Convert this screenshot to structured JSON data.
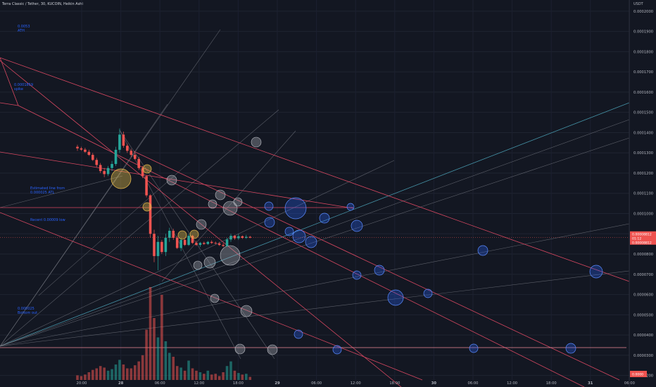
{
  "chart": {
    "title": "Terra Classic / Tether, 30, KUCOIN, Heikin Ashi",
    "unit": "USDT",
    "price_tag": [
      "0.00008812",
      "01:12",
      "0.00008812"
    ],
    "bottom_tag": "0.0000"
  },
  "annotations": [
    {
      "id": "ath",
      "line1": "0.0053",
      "line2": "ATH"
    },
    {
      "id": "spike",
      "line1": "0.0001859",
      "line2": "spike"
    },
    {
      "id": "est",
      "line1": "Estimated line from",
      "line2": "0.000025 ATL"
    },
    {
      "id": "recent",
      "line1": "Recent 0.00009 low",
      "line2": ""
    },
    {
      "id": "bottom",
      "line1": "0.000025",
      "line2": "Bottom out"
    }
  ],
  "chart_data": {
    "type": "candlestick",
    "title": "Terra Classic / Tether, 30, KUCOIN, Heikin Ashi",
    "ylabel": "USDT",
    "ylim": [
      1.78e-05,
      0.0002055
    ],
    "y_ticks": [
      "0.0000200",
      "0.0000300",
      "0.0000400",
      "0.0000500",
      "0.0000600",
      "0.0000700",
      "0.0000800",
      "0.0000900",
      "0.0001000",
      "0.0001100",
      "0.0001200",
      "0.0001300",
      "0.0001400",
      "0.0001500",
      "0.0001600",
      "0.0001700",
      "0.0001800",
      "0.0001900",
      "0.0002000"
    ],
    "x_ticks": [
      "20:00",
      "28",
      "06:00",
      "12:00",
      "18:00",
      "29",
      "06:00",
      "12:00",
      "18:00",
      "30",
      "06:00",
      "12:00",
      "18:00",
      "31",
      "06:00"
    ],
    "colors": {
      "up": "#26a69a",
      "down": "#ef5350",
      "bg": "#131722"
    },
    "candles": [
      {
        "o": 0.000133,
        "h": 0.000134,
        "l": 0.000131,
        "c": 0.0001322,
        "v": 0.6
      },
      {
        "o": 0.0001322,
        "h": 0.000133,
        "l": 0.000131,
        "c": 0.0001316,
        "v": 0.5
      },
      {
        "o": 0.0001316,
        "h": 0.0001325,
        "l": 0.00013,
        "c": 0.0001305,
        "v": 0.7
      },
      {
        "o": 0.0001305,
        "h": 0.0001315,
        "l": 0.0001285,
        "c": 0.000129,
        "v": 1.0
      },
      {
        "o": 0.000129,
        "h": 0.00013,
        "l": 0.000126,
        "c": 0.0001265,
        "v": 1.3
      },
      {
        "o": 0.0001265,
        "h": 0.0001275,
        "l": 0.000123,
        "c": 0.000124,
        "v": 1.5
      },
      {
        "o": 0.000124,
        "h": 0.000125,
        "l": 0.00012,
        "c": 0.000121,
        "v": 1.8
      },
      {
        "o": 0.000121,
        "h": 0.0001225,
        "l": 0.000118,
        "c": 0.0001195,
        "v": 1.6
      },
      {
        "o": 0.0001195,
        "h": 0.0001235,
        "l": 0.0001185,
        "c": 0.0001225,
        "v": 1.2
      },
      {
        "o": 0.0001225,
        "h": 0.000126,
        "l": 0.000121,
        "c": 0.0001245,
        "v": 1.4
      },
      {
        "o": 0.0001245,
        "h": 0.000133,
        "l": 0.0001235,
        "c": 0.0001315,
        "v": 2.0
      },
      {
        "o": 0.0001315,
        "h": 0.000142,
        "l": 0.00013,
        "c": 0.000139,
        "v": 2.6
      },
      {
        "o": 0.000139,
        "h": 0.0001405,
        "l": 0.0001325,
        "c": 0.0001335,
        "v": 2.0
      },
      {
        "o": 0.0001335,
        "h": 0.0001345,
        "l": 0.00013,
        "c": 0.000131,
        "v": 1.5
      },
      {
        "o": 0.000131,
        "h": 0.000132,
        "l": 0.000128,
        "c": 0.000129,
        "v": 1.5
      },
      {
        "o": 0.000129,
        "h": 0.00013,
        "l": 0.0001265,
        "c": 0.000127,
        "v": 1.9
      },
      {
        "o": 0.000127,
        "h": 0.000128,
        "l": 0.0001215,
        "c": 0.0001225,
        "v": 2.4
      },
      {
        "o": 0.0001225,
        "h": 0.0001235,
        "l": 0.0001175,
        "c": 0.0001185,
        "v": 3.2
      },
      {
        "o": 0.0001185,
        "h": 0.000119,
        "l": 0.000108,
        "c": 0.000109,
        "v": 6.5
      },
      {
        "o": 0.000109,
        "h": 0.0001095,
        "l": 8.8e-05,
        "c": 9e-05,
        "v": 12.0
      },
      {
        "o": 9e-05,
        "h": 9.2e-05,
        "l": 7.6e-05,
        "c": 7.9e-05,
        "v": 8.0
      },
      {
        "o": 7.9e-05,
        "h": 8.9e-05,
        "l": 7.2e-05,
        "c": 8.6e-05,
        "v": 5.5
      },
      {
        "o": 8.6e-05,
        "h": 8.7e-05,
        "l": 8e-05,
        "c": 8.1e-05,
        "v": 11.0
      },
      {
        "o": 8.1e-05,
        "h": 9e-05,
        "l": 7.9e-05,
        "c": 8.8e-05,
        "v": 5.0
      },
      {
        "o": 8.8e-05,
        "h": 9.3e-05,
        "l": 8.6e-05,
        "c": 9.15e-05,
        "v": 3.5
      },
      {
        "o": 9.15e-05,
        "h": 9.25e-05,
        "l": 8.7e-05,
        "c": 8.8e-05,
        "v": 3.0
      },
      {
        "o": 8.8e-05,
        "h": 8.9e-05,
        "l": 8.25e-05,
        "c": 8.3e-05,
        "v": 1.8
      },
      {
        "o": 8.3e-05,
        "h": 8.8e-05,
        "l": 8.15e-05,
        "c": 8.7e-05,
        "v": 1.6
      },
      {
        "o": 8.7e-05,
        "h": 8.75e-05,
        "l": 8.4e-05,
        "c": 8.45e-05,
        "v": 1.2
      },
      {
        "o": 8.45e-05,
        "h": 9e-05,
        "l": 8.4e-05,
        "c": 8.9e-05,
        "v": 2.5
      },
      {
        "o": 8.9e-05,
        "h": 8.95e-05,
        "l": 8.5e-05,
        "c": 8.55e-05,
        "v": 1.5
      },
      {
        "o": 8.55e-05,
        "h": 8.65e-05,
        "l": 8.4e-05,
        "c": 8.45e-05,
        "v": 1.2
      },
      {
        "o": 8.45e-05,
        "h": 8.6e-05,
        "l": 8.35e-05,
        "c": 8.55e-05,
        "v": 1.0
      },
      {
        "o": 8.55e-05,
        "h": 8.62e-05,
        "l": 8.45e-05,
        "c": 8.5e-05,
        "v": 0.8
      },
      {
        "o": 8.5e-05,
        "h": 8.65e-05,
        "l": 8.45e-05,
        "c": 8.6e-05,
        "v": 1.2
      },
      {
        "o": 8.6e-05,
        "h": 8.68e-05,
        "l": 8.5e-05,
        "c": 8.55e-05,
        "v": 0.7
      },
      {
        "o": 8.55e-05,
        "h": 8.62e-05,
        "l": 8.48e-05,
        "c": 8.52e-05,
        "v": 0.8
      },
      {
        "o": 8.52e-05,
        "h": 8.6e-05,
        "l": 8.4e-05,
        "c": 8.45e-05,
        "v": 0.5
      },
      {
        "o": 8.45e-05,
        "h": 8.55e-05,
        "l": 8.35e-05,
        "c": 8.4e-05,
        "v": 1.0
      },
      {
        "o": 8.4e-05,
        "h": 8.8e-05,
        "l": 8.35e-05,
        "c": 8.72e-05,
        "v": 1.8
      },
      {
        "o": 8.72e-05,
        "h": 9e-05,
        "l": 8.6e-05,
        "c": 8.9e-05,
        "v": 2.4
      },
      {
        "o": 8.9e-05,
        "h": 8.95e-05,
        "l": 8.7e-05,
        "c": 8.78e-05,
        "v": 1.2
      },
      {
        "o": 8.78e-05,
        "h": 9e-05,
        "l": 8.7e-05,
        "c": 8.88e-05,
        "v": 0.9
      },
      {
        "o": 8.88e-05,
        "h": 8.92e-05,
        "l": 8.75e-05,
        "c": 8.8e-05,
        "v": 0.7
      },
      {
        "o": 8.8e-05,
        "h": 8.95e-05,
        "l": 8.75e-05,
        "c": 8.85e-05,
        "v": 0.8
      },
      {
        "o": 8.85e-05,
        "h": 8.9e-05,
        "l": 8.78e-05,
        "c": 8.81e-05,
        "v": 0.4
      }
    ]
  }
}
